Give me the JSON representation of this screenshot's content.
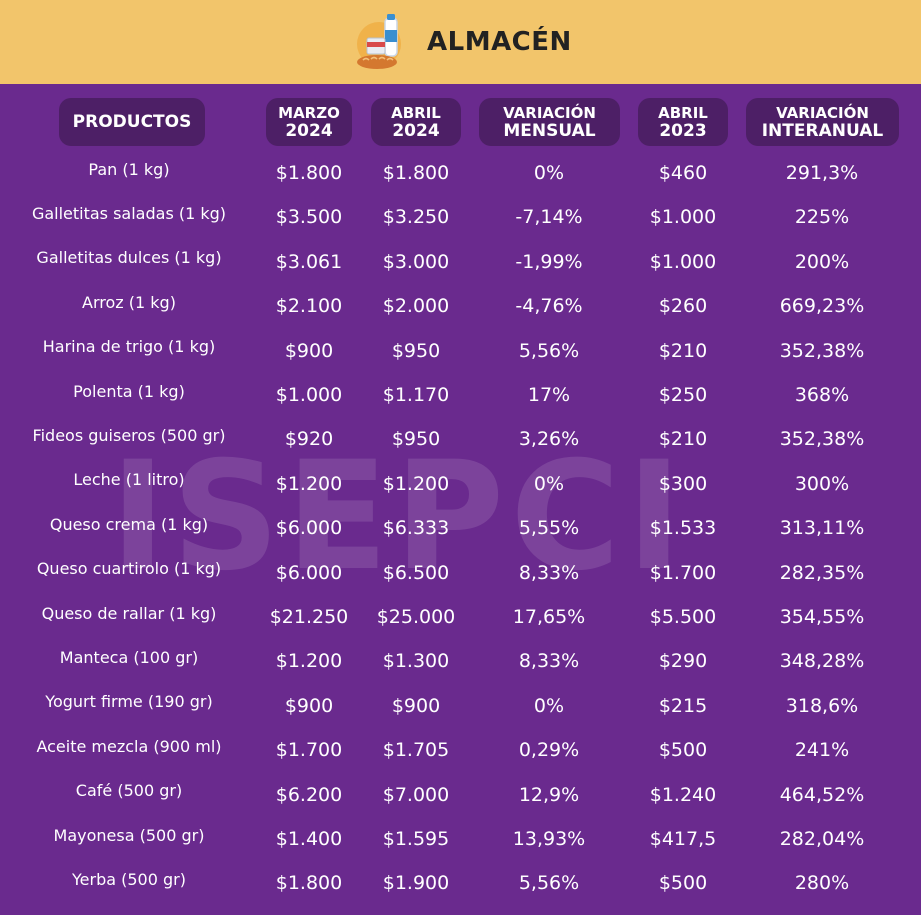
{
  "header": {
    "title": "ALMACÉN",
    "icon": "grocery-basket-icon",
    "color_background": "#f2c56b"
  },
  "watermark": "ISEPCI",
  "columns": [
    {
      "line1": "PRODUCTOS",
      "line2": ""
    },
    {
      "line1": "MARZO",
      "line2": "2024"
    },
    {
      "line1": "ABRIL",
      "line2": "2024"
    },
    {
      "line1": "VARIACIÓN",
      "line2": "MENSUAL"
    },
    {
      "line1": "ABRIL",
      "line2": "2023"
    },
    {
      "line1": "VARIACIÓN",
      "line2": "INTERANUAL"
    }
  ],
  "rows": [
    [
      "Pan (1 kg)",
      "$1.800",
      "$1.800",
      "0%",
      "$460",
      "291,3%"
    ],
    [
      "Galletitas saladas (1 kg)",
      "$3.500",
      "$3.250",
      "-7,14%",
      "$1.000",
      "225%"
    ],
    [
      "Galletitas dulces (1 kg)",
      "$3.061",
      "$3.000",
      "-1,99%",
      "$1.000",
      "200%"
    ],
    [
      "Arroz (1 kg)",
      "$2.100",
      "$2.000",
      "-4,76%",
      "$260",
      "669,23%"
    ],
    [
      "Harina de trigo (1 kg)",
      "$900",
      "$950",
      "5,56%",
      "$210",
      "352,38%"
    ],
    [
      "Polenta (1 kg)",
      "$1.000",
      "$1.170",
      "17%",
      "$250",
      "368%"
    ],
    [
      "Fideos guiseros (500 gr)",
      "$920",
      "$950",
      "3,26%",
      "$210",
      "352,38%"
    ],
    [
      "Leche (1 litro)",
      "$1.200",
      "$1.200",
      "0%",
      "$300",
      "300%"
    ],
    [
      "Queso crema (1 kg)",
      "$6.000",
      "$6.333",
      "5,55%",
      "$1.533",
      "313,11%"
    ],
    [
      "Queso cuartirolo (1 kg)",
      "$6.000",
      "$6.500",
      "8,33%",
      "$1.700",
      "282,35%"
    ],
    [
      "Queso de rallar (1 kg)",
      "$21.250",
      "$25.000",
      "17,65%",
      "$5.500",
      "354,55%"
    ],
    [
      "Manteca (100 gr)",
      "$1.200",
      "$1.300",
      "8,33%",
      "$290",
      "348,28%"
    ],
    [
      "Yogurt firme (190 gr)",
      "$900",
      "$900",
      "0%",
      "$215",
      "318,6%"
    ],
    [
      "Aceite mezcla (900 ml)",
      "$1.700",
      "$1.705",
      "0,29%",
      "$500",
      "241%"
    ],
    [
      "Café (500 gr)",
      "$6.200",
      "$7.000",
      "12,9%",
      "$1.240",
      "464,52%"
    ],
    [
      "Mayonesa (500 gr)",
      "$1.400",
      "$1.595",
      "13,93%",
      "$417,5",
      "282,04%"
    ],
    [
      "Yerba (500 gr)",
      "$1.800",
      "$1.900",
      "5,56%",
      "$500",
      "280%"
    ]
  ]
}
